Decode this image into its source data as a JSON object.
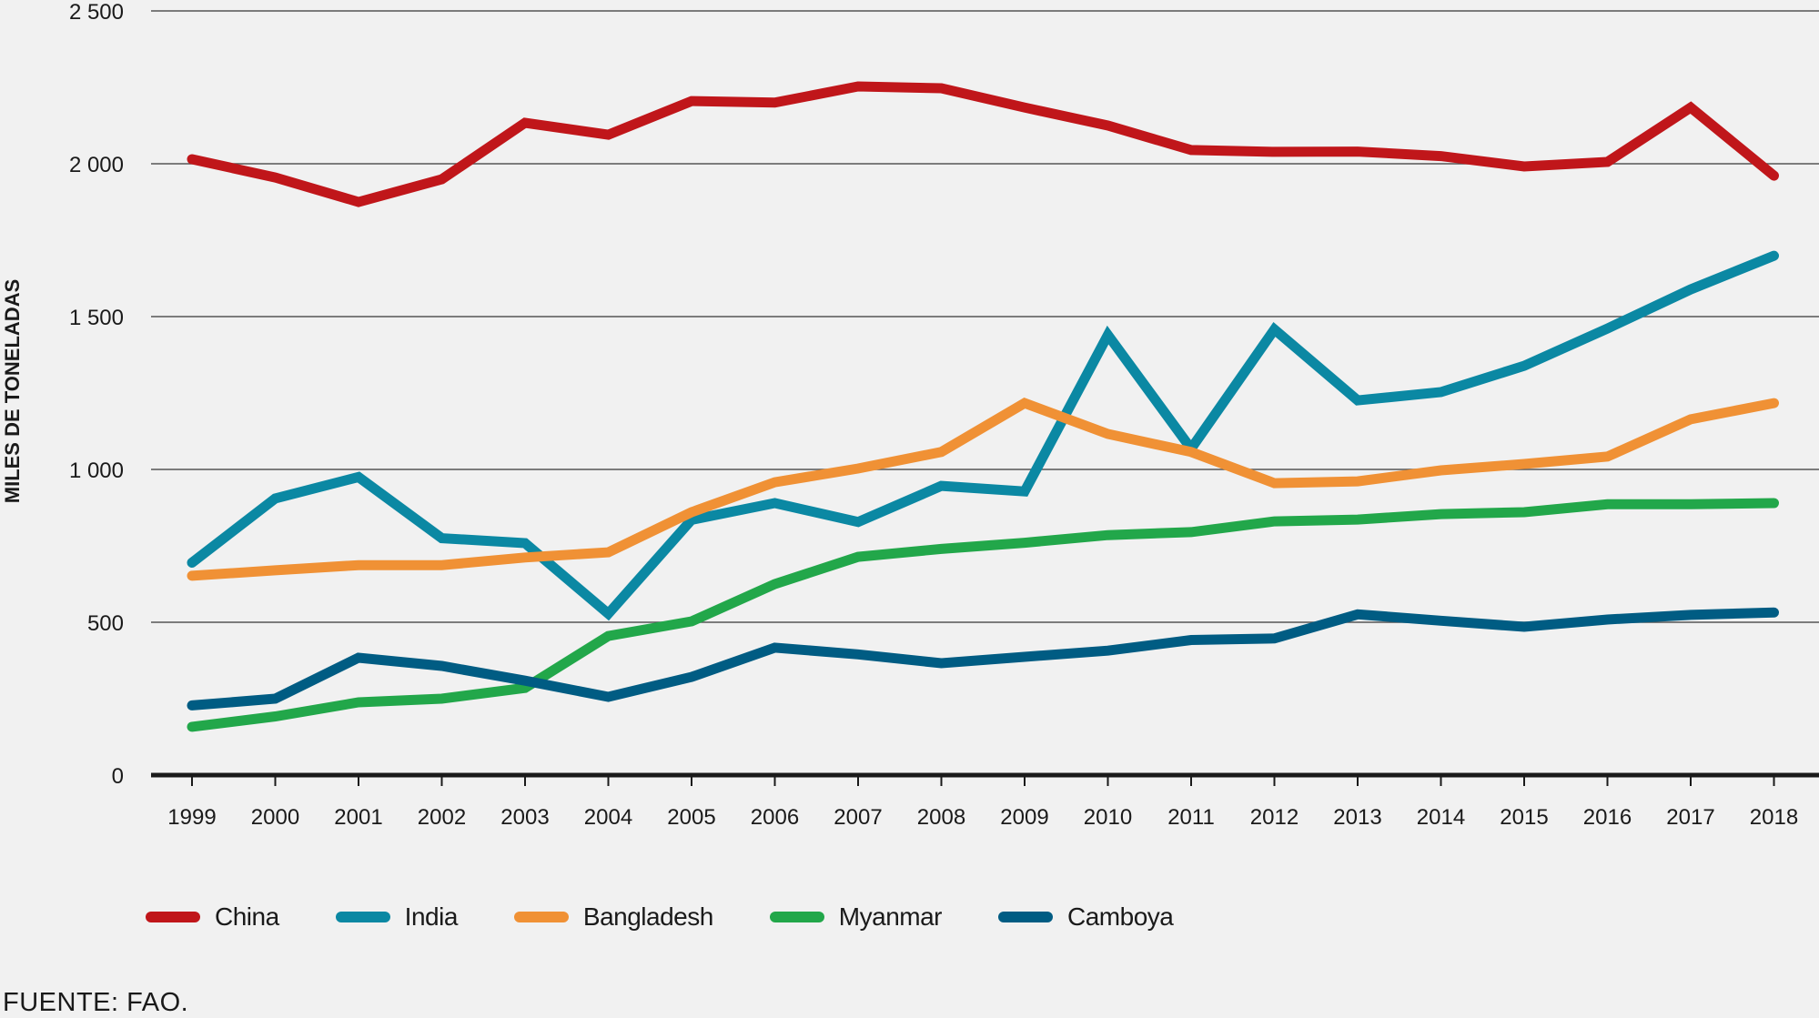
{
  "chart_data": {
    "type": "line",
    "title": "",
    "xlabel": "",
    "ylabel": "MILES DE TONELADAS",
    "ylim": [
      0,
      2500
    ],
    "yticks": [
      0,
      500,
      1000,
      1500,
      2000,
      2500
    ],
    "ytick_labels": [
      "0",
      "500",
      "1 000",
      "1 500",
      "2 000",
      "2 500"
    ],
    "grid": true,
    "legend_position": "bottom-left",
    "x": [
      "1999",
      "2000",
      "2001",
      "2002",
      "2003",
      "2004",
      "2005",
      "2006",
      "2007",
      "2008",
      "2009",
      "2010",
      "2011",
      "2012",
      "2013",
      "2014",
      "2015",
      "2016",
      "2017",
      "2018"
    ],
    "series": [
      {
        "name": "China",
        "color": "#c0161a",
        "values": [
          2015,
          1955,
          1875,
          1949,
          2134,
          2095,
          2205,
          2200,
          2253,
          2247,
          2184,
          2125,
          2045,
          2039,
          2040,
          2025,
          1991,
          2006,
          2184,
          1961
        ]
      },
      {
        "name": "India",
        "color": "#0b88a3",
        "values": [
          695,
          905,
          975,
          775,
          759,
          528,
          835,
          890,
          828,
          946,
          928,
          1440,
          1068,
          1458,
          1226,
          1253,
          1339,
          1461,
          1589,
          1699
        ]
      },
      {
        "name": "Bangladesh",
        "color": "#f09135",
        "values": [
          652,
          670,
          687,
          687,
          712,
          729,
          860,
          958,
          1003,
          1057,
          1217,
          1116,
          1057,
          955,
          961,
          997,
          1018,
          1042,
          1164,
          1217
        ]
      },
      {
        "name": "Myanmar",
        "color": "#22a74a",
        "values": [
          158,
          192,
          238,
          250,
          285,
          455,
          503,
          625,
          714,
          740,
          760,
          785,
          795,
          830,
          836,
          854,
          860,
          886,
          886,
          890
        ]
      },
      {
        "name": "Camboya",
        "color": "#005c83",
        "values": [
          228,
          250,
          384,
          357,
          309,
          256,
          321,
          417,
          395,
          366,
          387,
          407,
          442,
          447,
          526,
          505,
          485,
          509,
          524,
          532
        ]
      }
    ]
  },
  "source": "FUENTE: FAO."
}
